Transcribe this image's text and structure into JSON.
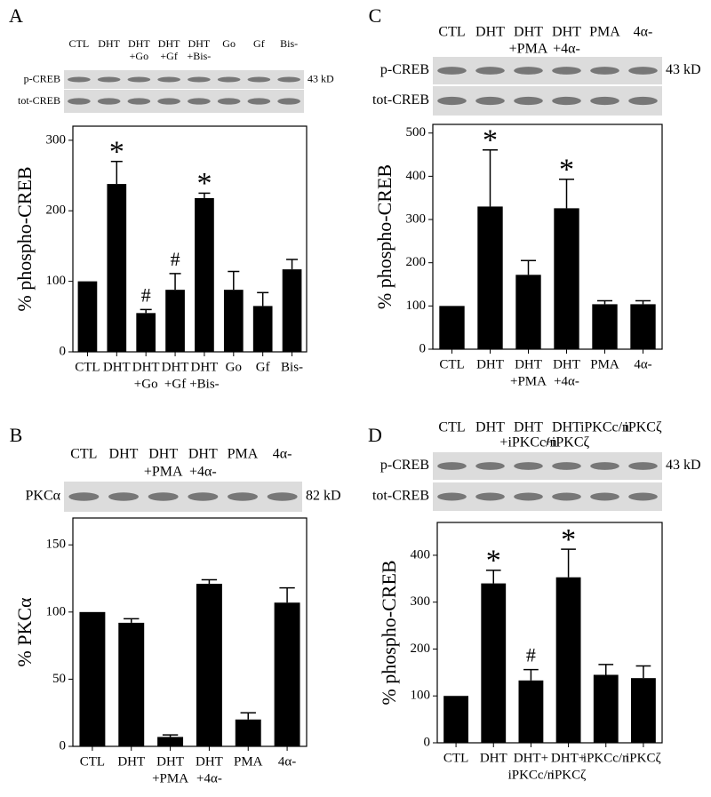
{
  "chart_data": [
    {
      "type": "bar",
      "panel": "A",
      "ylabel": "% phospho-CREB",
      "categories": [
        [
          "CTL"
        ],
        [
          "DHT"
        ],
        [
          "DHT",
          "+Go"
        ],
        [
          "DHT",
          "+Gf"
        ],
        [
          "DHT",
          "+Bis-"
        ],
        [
          "Go"
        ],
        [
          "Gf"
        ],
        [
          "Bis-"
        ]
      ],
      "values": [
        100,
        238,
        55,
        88,
        218,
        88,
        65,
        117
      ],
      "errors": [
        null,
        32,
        5,
        23,
        7,
        26,
        19,
        14
      ],
      "annotations": [
        null,
        "*",
        "#",
        "#",
        "*",
        null,
        null,
        null
      ],
      "color": "#000000",
      "ylim": [
        0,
        320
      ],
      "yticks": [
        0,
        100,
        200,
        300
      ],
      "blot": {
        "lanes": [
          [
            "CTL"
          ],
          [
            "DHT"
          ],
          [
            "DHT",
            "+Go"
          ],
          [
            "DHT",
            "+Gf"
          ],
          [
            "DHT",
            "+Bis-"
          ],
          [
            "Go"
          ],
          [
            "Gf"
          ],
          [
            "Bis-"
          ]
        ],
        "rows": [
          "p-CREB",
          "tot-CREB"
        ],
        "size": "43 kD"
      }
    },
    {
      "type": "bar",
      "panel": "C",
      "ylabel": "% phospho-CREB",
      "categories": [
        [
          "CTL"
        ],
        [
          "DHT"
        ],
        [
          "DHT",
          "+PMA"
        ],
        [
          "DHT",
          "+4α-"
        ],
        [
          "PMA"
        ],
        [
          "4α-"
        ]
      ],
      "values": [
        100,
        330,
        172,
        326,
        104,
        104
      ],
      "errors": [
        null,
        131,
        33,
        67,
        8,
        8
      ],
      "annotations": [
        null,
        "*",
        null,
        "*",
        null,
        null
      ],
      "color": "#000000",
      "ylim": [
        0,
        520
      ],
      "yticks": [
        0,
        100,
        200,
        300,
        400,
        500
      ],
      "blot": {
        "lanes": [
          [
            "CTL"
          ],
          [
            "DHT"
          ],
          [
            "DHT",
            "+PMA"
          ],
          [
            "DHT",
            "+4α-"
          ],
          [
            "PMA"
          ],
          [
            "4α-"
          ]
        ],
        "rows": [
          "p-CREB",
          "tot-CREB"
        ],
        "size": "43 kD"
      }
    },
    {
      "type": "bar",
      "panel": "B",
      "ylabel": "% PKCα",
      "categories": [
        [
          "CTL"
        ],
        [
          "DHT"
        ],
        [
          "DHT",
          "+PMA"
        ],
        [
          "DHT",
          "+4α-"
        ],
        [
          "PMA"
        ],
        [
          "4α-"
        ]
      ],
      "values": [
        100,
        92,
        7,
        121,
        20,
        107
      ],
      "errors": [
        null,
        3,
        1.5,
        3,
        5,
        11
      ],
      "annotations": [
        null,
        null,
        null,
        null,
        null,
        null
      ],
      "color": "#000000",
      "ylim": [
        0,
        170
      ],
      "yticks": [
        0,
        50,
        100,
        150
      ],
      "blot": {
        "lanes": [
          [
            "CTL"
          ],
          [
            "DHT"
          ],
          [
            "DHT",
            "+PMA"
          ],
          [
            "DHT",
            "+4α-"
          ],
          [
            "PMA"
          ],
          [
            "4α-"
          ]
        ],
        "rows": [
          "PKCα"
        ],
        "size": "82 kD"
      }
    },
    {
      "type": "bar",
      "panel": "D",
      "ylabel": "% phospho-CREB",
      "categories": [
        [
          "CTL"
        ],
        [
          "DHT"
        ],
        [
          "DHT+",
          "iPKCc/n"
        ],
        [
          "DHT+",
          "iPKCζ"
        ],
        [
          "iPKCc/n"
        ],
        [
          "iPKCζ"
        ]
      ],
      "values": [
        100,
        340,
        133,
        353,
        145,
        138
      ],
      "errors": [
        null,
        28,
        23,
        60,
        22,
        26
      ],
      "annotations": [
        null,
        "*",
        "#",
        "*",
        null,
        null
      ],
      "color": "#000000",
      "ylim": [
        0,
        470
      ],
      "yticks": [
        0,
        100,
        200,
        300,
        400
      ],
      "blot": {
        "lanes": [
          [
            "CTL"
          ],
          [
            "DHT"
          ],
          [
            "DHT",
            "+iPKCc/n"
          ],
          [
            "DHT",
            "+iPKCζ"
          ],
          [
            "iPKCc/n"
          ],
          [
            "iPKCζ"
          ]
        ],
        "rows": [
          "p-CREB",
          "tot-CREB"
        ],
        "size": "43 kD"
      }
    }
  ]
}
